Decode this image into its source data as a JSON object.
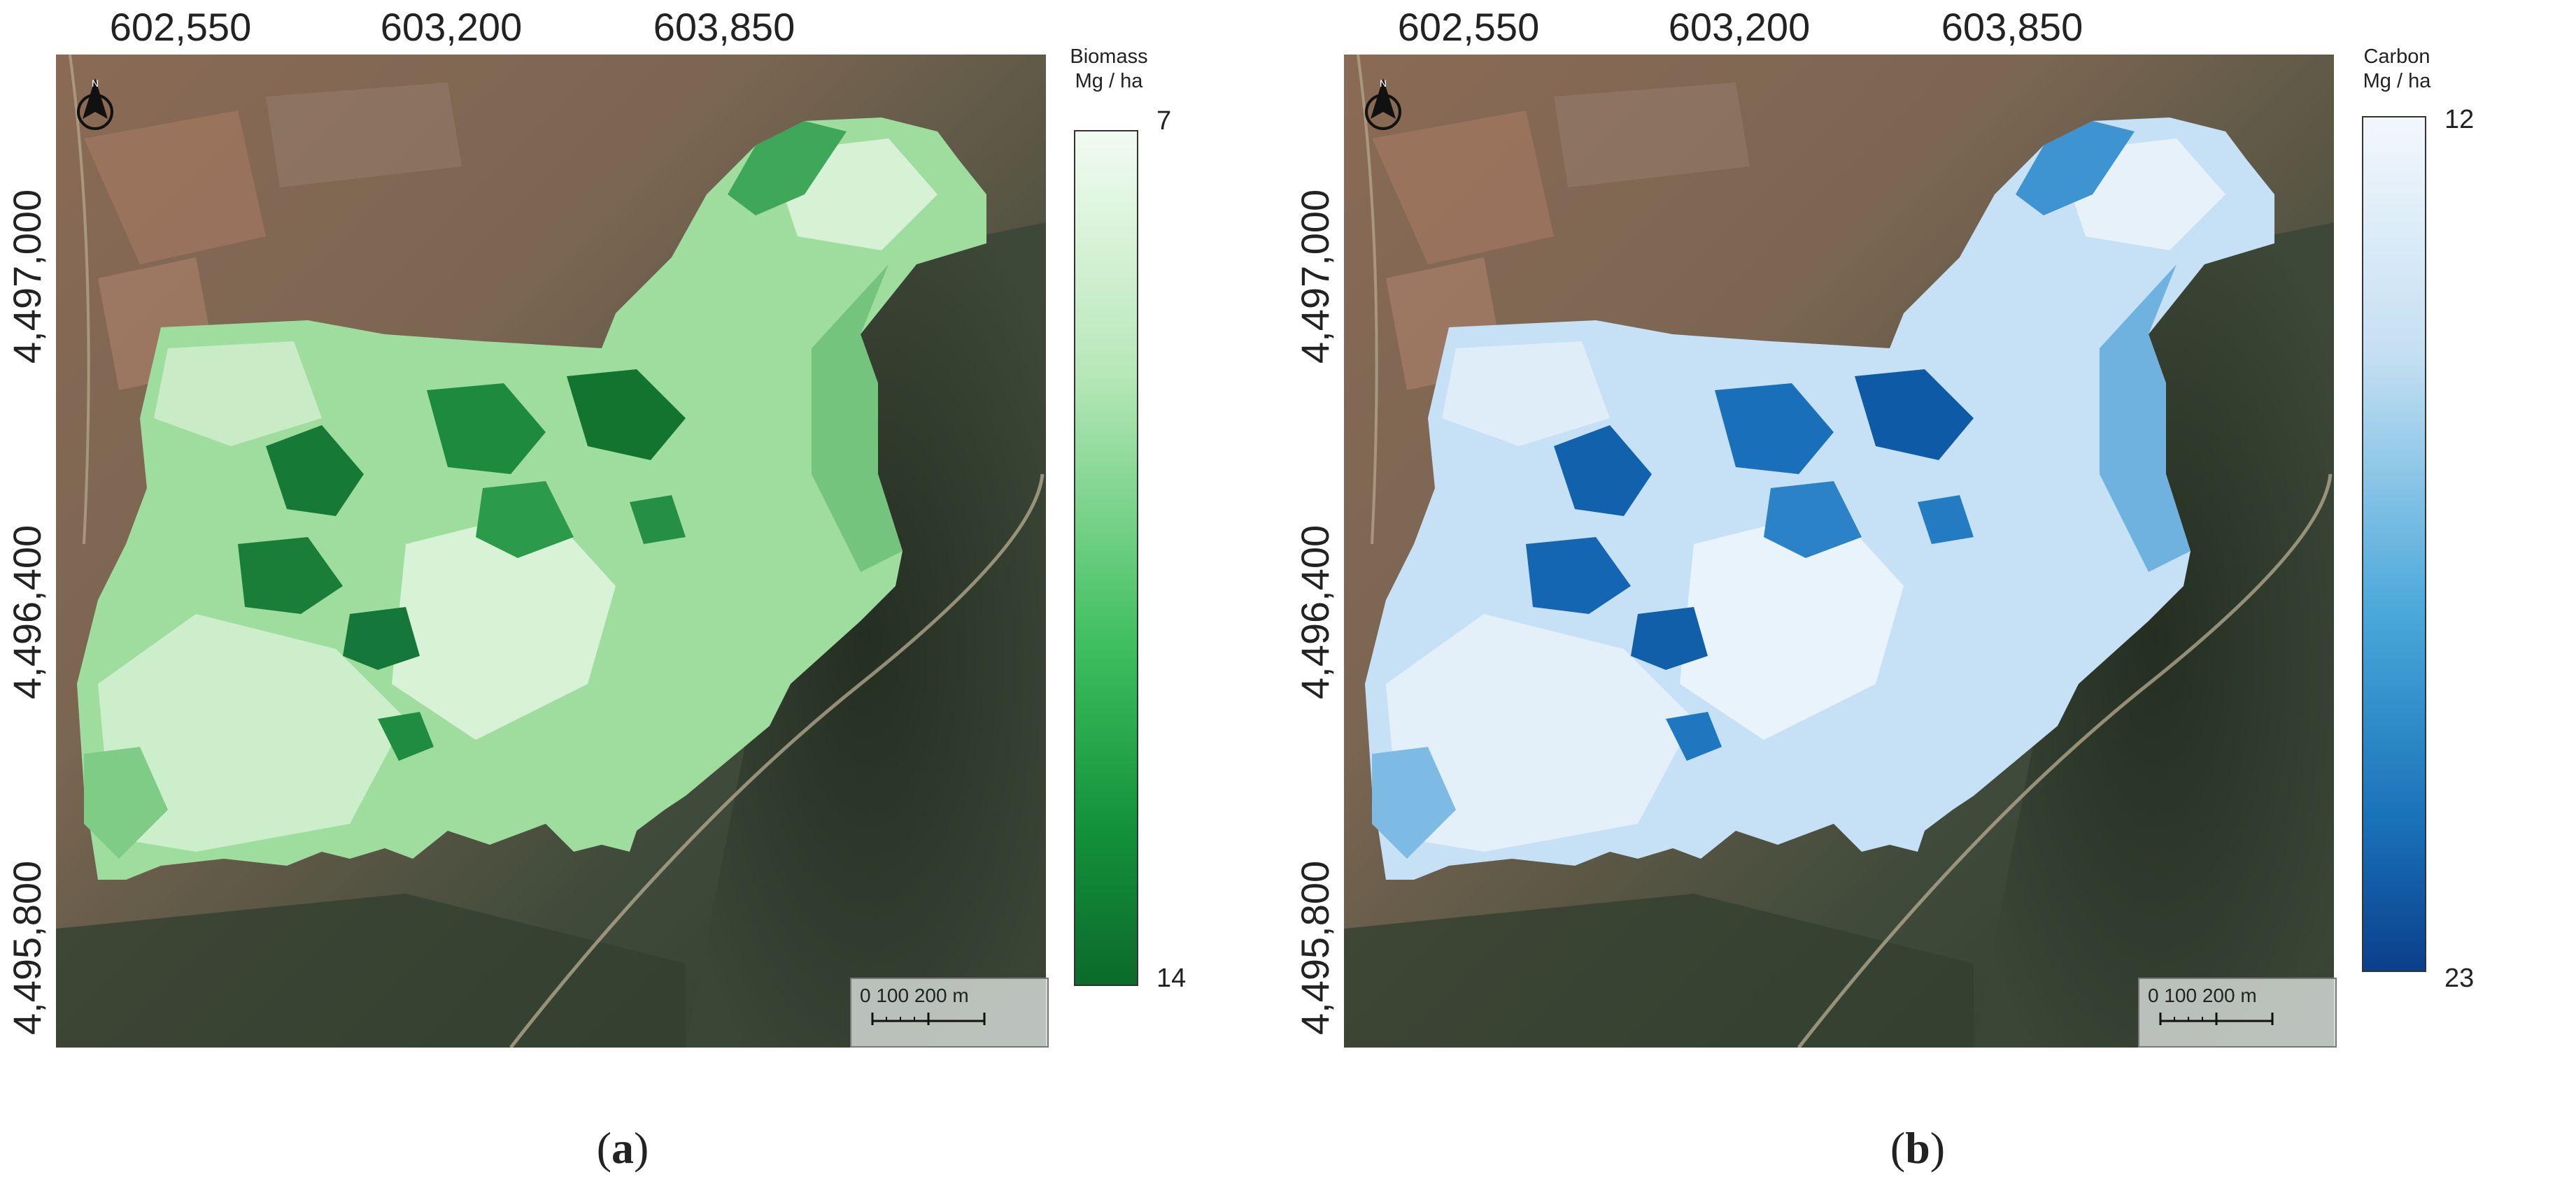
{
  "panels": [
    {
      "id": "a",
      "caption_label": "a",
      "x_ticks": [
        "602,550",
        "603,200",
        "603,850"
      ],
      "y_ticks": [
        "4,497,000",
        "4,496,400",
        "4,495,800"
      ],
      "legend": {
        "title_line1": "Biomass",
        "title_line2": "Mg / ha",
        "top_value": "7",
        "bottom_value": "14",
        "ramp_light": "#f1fbf1",
        "ramp_dark": "#0c6a2b"
      },
      "scale_bar": {
        "label": "0   100  200 m"
      },
      "north_arrow": "N"
    },
    {
      "id": "b",
      "caption_label": "b",
      "x_ticks": [
        "602,550",
        "603,200",
        "603,850"
      ],
      "y_ticks": [
        "4,497,000",
        "4,496,400",
        "4,495,800"
      ],
      "legend": {
        "title_line1": "Carbon",
        "title_line2": "Mg / ha",
        "top_value": "12",
        "bottom_value": "23",
        "ramp_light": "#f2f7fd",
        "ramp_dark": "#0b3f8c"
      },
      "scale_bar": {
        "label": "0   100  200 m"
      },
      "north_arrow": "N"
    }
  ]
}
